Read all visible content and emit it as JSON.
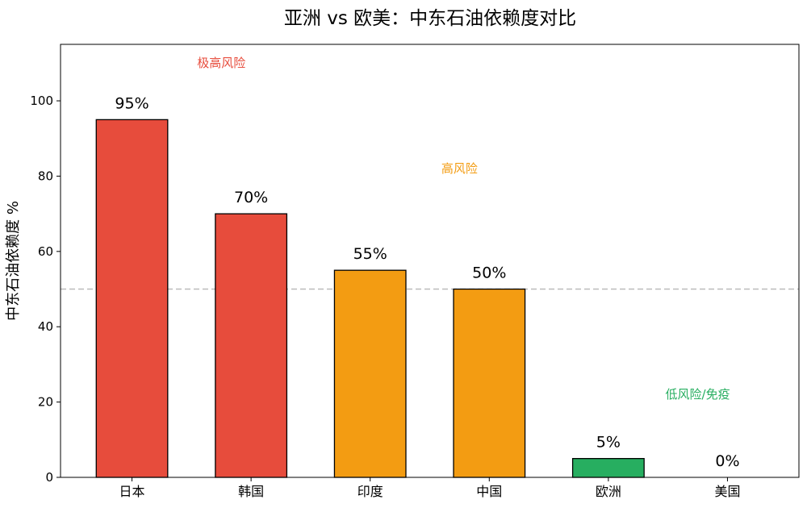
{
  "chart_data": {
    "type": "bar",
    "title": "亚洲 vs 欧美：中东石油依赖度对比",
    "xlabel": "",
    "ylabel": "中东石油依赖度 %",
    "categories": [
      "日本",
      "韩国",
      "印度",
      "中国",
      "欧洲",
      "美国"
    ],
    "values": [
      95,
      70,
      55,
      50,
      5,
      0
    ],
    "value_labels": [
      "95%",
      "70%",
      "55%",
      "50%",
      "5%",
      "0%"
    ],
    "bar_colors": [
      "#e74c3c",
      "#e74c3c",
      "#f39c12",
      "#f39c12",
      "#27ae60",
      "#27ae60"
    ],
    "ylim": [
      0,
      115
    ],
    "yticks": [
      0,
      20,
      40,
      60,
      80,
      100
    ],
    "reference_line": {
      "value": 50,
      "style": "dashed",
      "color": "#bbbbbb"
    },
    "annotations": [
      {
        "text": "极高风险",
        "color": "#e74c3c",
        "x": 0.75,
        "y": 109
      },
      {
        "text": "高风险",
        "color": "#f39c12",
        "x": 2.75,
        "y": 81
      },
      {
        "text": "低风险/免疫",
        "color": "#27ae60",
        "x": 4.75,
        "y": 21
      }
    ],
    "grid": false,
    "legend": "none"
  }
}
